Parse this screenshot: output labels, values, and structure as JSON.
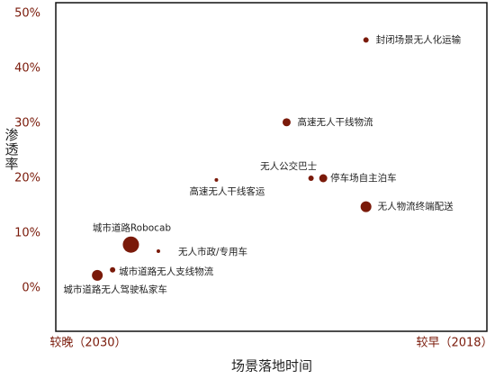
{
  "chart_data": {
    "type": "bubble",
    "x_label": "场景落地时间",
    "y_label": "渗透率",
    "labels": [
      "封闭场景无人化运输",
      "高速无人干线物流",
      "无人公交巴士",
      "停车场自主泊车",
      "高速无人干线客运",
      "无人物流终端配送",
      "城市道路Robocab",
      "无人市政/专用车",
      "城市道路无人支线物流",
      "城市道路无人驾驶私家车"
    ],
    "x": [
      2020.9,
      2023.5,
      2022.7,
      2022.3,
      2025.8,
      2020.9,
      2028.6,
      2027.7,
      2029.2,
      2029.7
    ],
    "values": [
      45.2,
      30.2,
      20,
      20,
      19.7,
      14.8,
      7.9,
      6.7,
      3.3,
      2.3
    ],
    "sizes": [
      9,
      20,
      9,
      20,
      4,
      36,
      81,
      4,
      9,
      36
    ],
    "color": "#7a1a0a",
    "xlim": [
      2031.06,
      2016.94
    ],
    "xticks": [
      {
        "value": 2030,
        "label": "较晚（2030）"
      },
      {
        "value": 2018,
        "label": "较早（2018）"
      }
    ],
    "ylim": [
      -7.9,
      52
    ],
    "yticks": [
      {
        "value": 0,
        "label": "0%"
      },
      {
        "value": 10,
        "label": "10%"
      },
      {
        "value": 20,
        "label": "20%"
      },
      {
        "value": 30,
        "label": "30%"
      },
      {
        "value": 40,
        "label": "40%"
      },
      {
        "value": 50,
        "label": "50%"
      }
    ]
  }
}
